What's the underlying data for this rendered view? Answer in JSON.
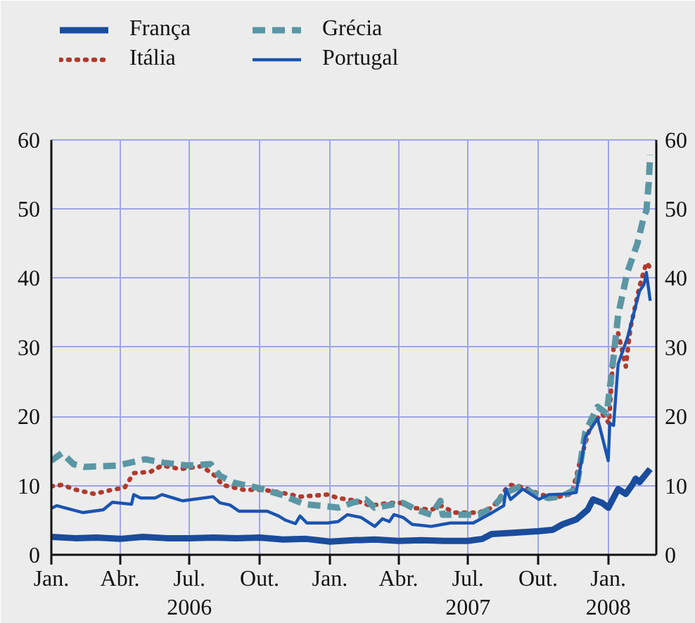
{
  "chart_data": {
    "type": "line",
    "xlim": [
      "2006-01-01",
      "2008-03-04"
    ],
    "xticks": [
      {
        "value": "2006-01-01",
        "label": "Jan."
      },
      {
        "value": "2006-04-01",
        "label": "Abr."
      },
      {
        "value": "2006-07-01",
        "label": "Jul.\n2006"
      },
      {
        "value": "2006-10-01",
        "label": "Out."
      },
      {
        "value": "2007-01-01",
        "label": "Jan."
      },
      {
        "value": "2007-04-01",
        "label": "Abr."
      },
      {
        "value": "2007-07-01",
        "label": "Jul.\n2007"
      },
      {
        "value": "2007-10-01",
        "label": "Out."
      },
      {
        "value": "2008-01-01",
        "label": "Jan.\n2008"
      }
    ],
    "ylim": [
      0,
      60
    ],
    "yticks": [
      0,
      10,
      20,
      30,
      40,
      50,
      60
    ],
    "y2lim": [
      0,
      60
    ],
    "y2ticks": [
      0,
      10,
      20,
      30,
      40,
      50,
      60
    ],
    "grid": true,
    "legend": "top left",
    "series": [
      {
        "name": "França",
        "color": "#1a4c9c",
        "line_style": "solid",
        "x": [
          "2006-01-01",
          "2006-02-01",
          "2006-03-01",
          "2006-04-01",
          "2006-05-01",
          "2006-06-01",
          "2006-07-01",
          "2006-08-01",
          "2006-09-01",
          "2006-10-01",
          "2006-11-01",
          "2006-12-01",
          "2007-01-01",
          "2007-02-01",
          "2007-03-01",
          "2007-04-01",
          "2007-05-01",
          "2007-06-01",
          "2007-07-01",
          "2007-07-20",
          "2007-08-01",
          "2007-09-01",
          "2007-10-01",
          "2007-10-20",
          "2007-11-02",
          "2007-11-20",
          "2007-12-05",
          "2007-12-12",
          "2007-12-24",
          "2008-01-01",
          "2008-01-14",
          "2008-01-24",
          "2008-02-02",
          "2008-02-06",
          "2008-02-11",
          "2008-02-25"
        ],
        "values": [
          2.6,
          2.4,
          2.5,
          2.3,
          2.6,
          2.4,
          2.4,
          2.5,
          2.4,
          2.5,
          2.2,
          2.3,
          1.9,
          2.1,
          2.2,
          2.0,
          2.1,
          2.0,
          2.0,
          2.3,
          3.0,
          3.2,
          3.4,
          3.6,
          4.4,
          5.1,
          6.5,
          8.0,
          7.5,
          6.8,
          9.5,
          8.8,
          10.2,
          11.0,
          10.5,
          12.4
        ]
      },
      {
        "name": "Itália",
        "color": "#b03a2e",
        "line_style": "dotted",
        "x": [
          "2006-01-01",
          "2006-01-15",
          "2006-02-02",
          "2006-02-26",
          "2006-03-22",
          "2006-04-07",
          "2006-04-19",
          "2006-05-11",
          "2006-05-26",
          "2006-06-19",
          "2006-07-17",
          "2006-08-04",
          "2006-08-13",
          "2006-09-10",
          "2006-10-05",
          "2006-10-29",
          "2006-11-23",
          "2006-12-29",
          "2007-01-12",
          "2007-02-05",
          "2007-02-23",
          "2007-03-20",
          "2007-04-04",
          "2007-04-19",
          "2007-05-14",
          "2007-05-27",
          "2007-06-13",
          "2007-07-15",
          "2007-08-02",
          "2007-08-20",
          "2007-08-26",
          "2007-09-14",
          "2007-10-02",
          "2007-10-21",
          "2007-11-14",
          "2007-11-26",
          "2007-12-09",
          "2007-12-24",
          "2008-01-02",
          "2008-01-08",
          "2008-01-14",
          "2008-01-24",
          "2008-01-30",
          "2008-02-11",
          "2008-02-20",
          "2008-02-25"
        ],
        "values": [
          9.9,
          10.1,
          9.4,
          8.8,
          9.4,
          9.7,
          11.8,
          12.0,
          12.9,
          12.4,
          12.8,
          11.4,
          10.1,
          9.4,
          9.4,
          9.0,
          8.4,
          8.7,
          8.2,
          7.8,
          7.1,
          7.5,
          7.5,
          6.8,
          6.5,
          7.1,
          6.1,
          6.1,
          6.8,
          9.5,
          10.1,
          9.7,
          8.8,
          8.2,
          8.8,
          13.9,
          18.7,
          20.4,
          19.0,
          29.9,
          32.0,
          27.2,
          32.7,
          38.8,
          42.2,
          41.5
        ]
      },
      {
        "name": "Grécia",
        "color": "#5a96a4",
        "line_style": "dashed",
        "x": [
          "2006-01-01",
          "2006-01-15",
          "2006-01-30",
          "2006-02-14",
          "2006-03-29",
          "2006-05-04",
          "2006-05-29",
          "2006-06-29",
          "2006-07-29",
          "2006-08-10",
          "2006-08-29",
          "2006-09-28",
          "2006-10-29",
          "2006-11-29",
          "2006-12-29",
          "2007-01-12",
          "2007-01-30",
          "2007-02-17",
          "2007-03-01",
          "2007-03-26",
          "2007-04-07",
          "2007-04-25",
          "2007-05-14",
          "2007-05-26",
          "2007-05-29",
          "2007-06-13",
          "2007-07-15",
          "2007-08-02",
          "2007-08-20",
          "2007-09-08",
          "2007-09-26",
          "2007-10-15",
          "2007-11-02",
          "2007-11-20",
          "2007-12-02",
          "2007-12-18",
          "2007-12-30",
          "2008-01-08",
          "2008-01-14",
          "2008-01-26",
          "2008-02-08",
          "2008-02-17",
          "2008-02-20",
          "2008-02-23",
          "2008-02-25"
        ],
        "values": [
          13.6,
          14.7,
          13.1,
          12.7,
          12.9,
          13.8,
          13.3,
          12.9,
          13.1,
          11.4,
          10.4,
          9.7,
          8.7,
          7.3,
          7.0,
          6.8,
          7.5,
          8.0,
          6.8,
          7.3,
          7.5,
          6.5,
          5.8,
          7.8,
          5.8,
          5.8,
          5.8,
          6.8,
          9.0,
          9.9,
          8.8,
          8.2,
          8.5,
          9.5,
          17.7,
          21.4,
          20.4,
          28.6,
          34.7,
          40.8,
          44.9,
          49.0,
          49.7,
          53.7,
          57.8
        ]
      },
      {
        "name": "Portugal",
        "color": "#1a54b0",
        "line_style": "solid",
        "x": [
          "2006-01-01",
          "2006-01-08",
          "2006-02-11",
          "2006-03-10",
          "2006-03-22",
          "2006-04-16",
          "2006-04-19",
          "2006-04-28",
          "2006-05-17",
          "2006-05-26",
          "2006-06-22",
          "2006-08-01",
          "2006-08-10",
          "2006-08-23",
          "2006-09-04",
          "2006-10-11",
          "2006-10-26",
          "2006-11-04",
          "2006-11-17",
          "2006-11-23",
          "2006-12-02",
          "2006-12-29",
          "2007-01-12",
          "2007-01-24",
          "2007-02-11",
          "2007-03-01",
          "2007-03-11",
          "2007-03-20",
          "2007-03-26",
          "2007-04-07",
          "2007-04-19",
          "2007-05-14",
          "2007-06-08",
          "2007-07-08",
          "2007-08-02",
          "2007-08-17",
          "2007-08-20",
          "2007-08-26",
          "2007-09-11",
          "2007-10-02",
          "2007-10-15",
          "2007-11-08",
          "2007-11-20",
          "2007-12-02",
          "2007-12-18",
          "2008-01-01",
          "2008-01-03",
          "2008-01-08",
          "2008-01-14",
          "2008-01-26",
          "2008-02-11",
          "2008-02-17",
          "2008-02-20",
          "2008-02-25"
        ],
        "values": [
          6.7,
          7.1,
          6.1,
          6.5,
          7.6,
          7.3,
          8.7,
          8.2,
          8.2,
          8.7,
          7.8,
          8.4,
          7.5,
          7.2,
          6.3,
          6.3,
          5.6,
          5.0,
          4.5,
          5.6,
          4.6,
          4.6,
          4.8,
          5.8,
          5.4,
          4.1,
          5.2,
          4.8,
          5.8,
          5.4,
          4.4,
          4.1,
          4.6,
          4.6,
          6.1,
          7.1,
          9.5,
          8.0,
          9.5,
          8.0,
          8.7,
          8.8,
          9.0,
          17.0,
          19.7,
          13.6,
          19.0,
          18.7,
          27.6,
          31.3,
          38.1,
          39.1,
          40.8,
          36.7
        ]
      }
    ]
  }
}
